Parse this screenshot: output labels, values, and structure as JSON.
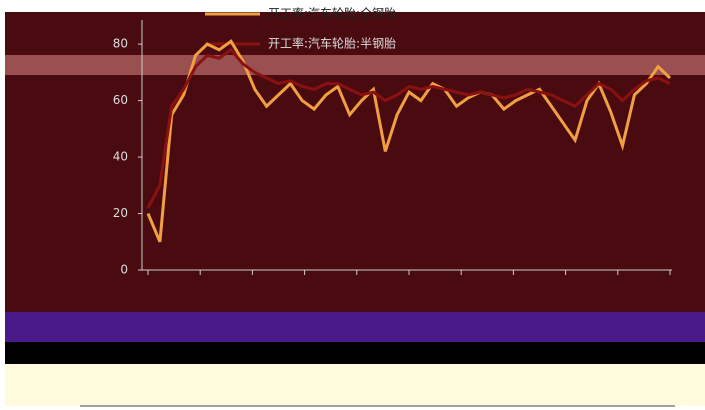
{
  "chart_data": {
    "type": "line",
    "series": [
      {
        "name": "开工率:汽车轮胎:全钢胎",
        "color": "#f0a040",
        "values": [
          20,
          10,
          55,
          62,
          76,
          80,
          78,
          81,
          74,
          64,
          58,
          62,
          66,
          60,
          57,
          62,
          65,
          55,
          60,
          64,
          42,
          55,
          63,
          60,
          66,
          64,
          58,
          61,
          63,
          62,
          57,
          60,
          62,
          64,
          58,
          52,
          46,
          60,
          66,
          56,
          44,
          62,
          66,
          72,
          68
        ]
      },
      {
        "name": "开工率:汽车轮胎:半钢胎",
        "color": "#8b1010",
        "values": [
          22,
          30,
          58,
          64,
          72,
          76,
          75,
          78,
          73,
          70,
          68,
          66,
          67,
          65,
          64,
          66,
          66,
          64,
          62,
          63,
          60,
          62,
          65,
          64,
          65,
          64,
          63,
          62,
          63,
          62,
          61,
          62,
          64,
          63,
          62,
          60,
          58,
          62,
          66,
          64,
          60,
          64,
          67,
          68,
          66
        ]
      }
    ],
    "ylim": [
      0,
      85
    ],
    "yticks": [
      0,
      20,
      40,
      60,
      80
    ],
    "grid": false
  }
}
